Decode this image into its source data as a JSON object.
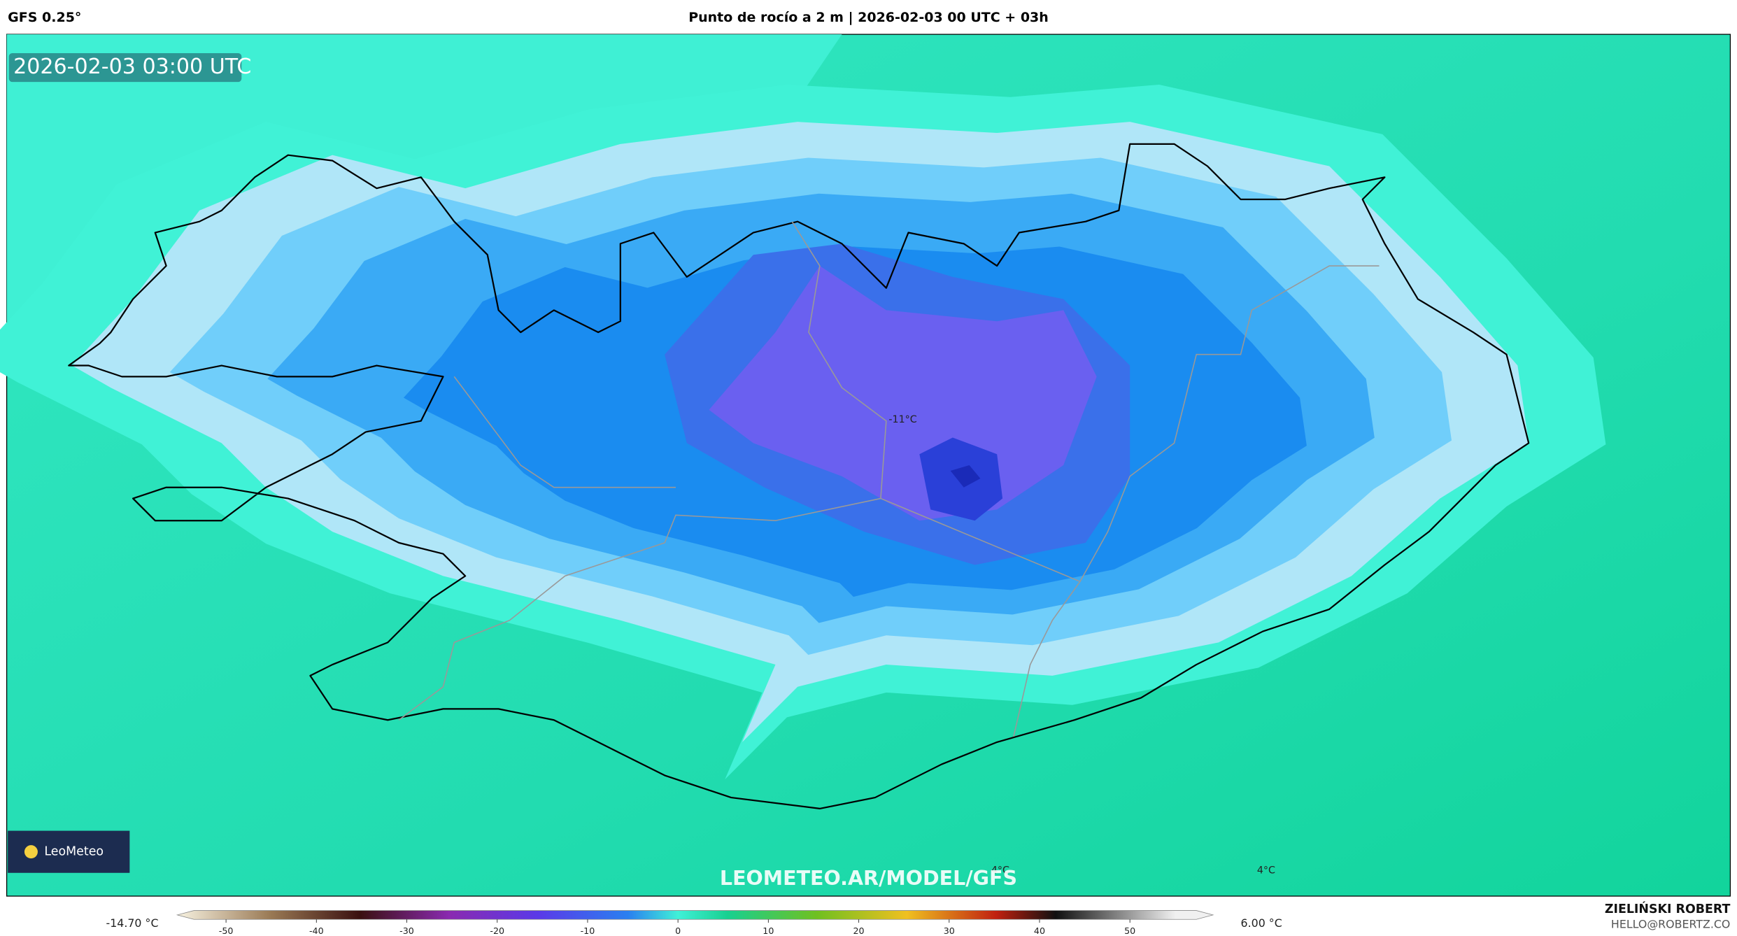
{
  "header": {
    "model": "GFS 0.25°",
    "title": "Punto de rocío a 2 m | 2026-02-03 00 UTC + 03h"
  },
  "map": {
    "timestamp": "2026-02-03 03:00 UTC",
    "contour_labels": [
      "-11°C",
      "4°C",
      "4°C"
    ],
    "watermark": "LEOMETEO.AR/MODEL/GFS",
    "logo": "LeoMeteo"
  },
  "colorbar": {
    "min_label": "-14.70 °C",
    "max_label": "6.00 °C",
    "ticks": [
      -50,
      -40,
      -30,
      -20,
      -10,
      0,
      10,
      20,
      30,
      40,
      50
    ]
  },
  "credits": {
    "author": "ZIELIŃSKI ROBERT",
    "email": "HELLO@ROBERTZ.CO"
  }
}
